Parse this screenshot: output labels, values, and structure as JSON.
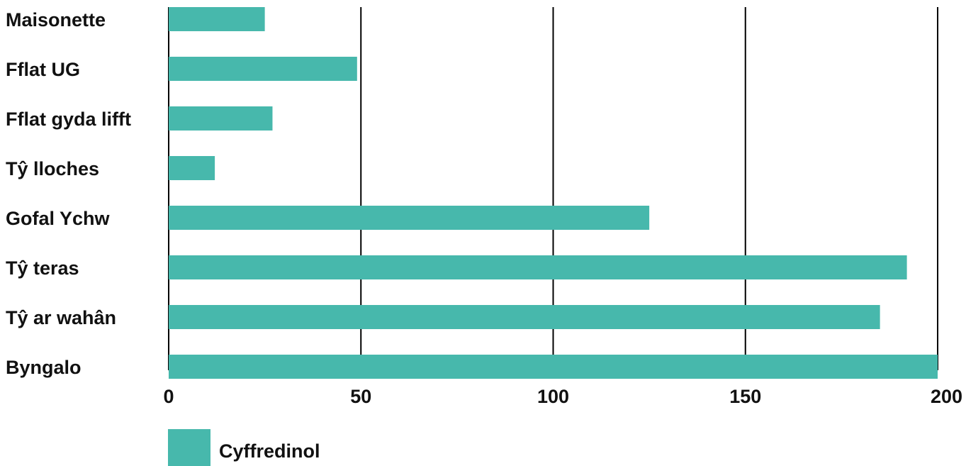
{
  "chart_data": {
    "type": "bar",
    "orientation": "horizontal",
    "categories": [
      "Maisonette",
      "Fflat UG",
      "Fflat gyda lifft",
      "Tŷ lloches",
      "Gofal Ychw",
      "Tŷ teras",
      "Tŷ ar wahân",
      "Byngalo"
    ],
    "series": [
      {
        "name": "Cyffredinol",
        "color": "#47b8ac",
        "values": [
          25,
          49,
          27,
          12,
          125,
          192,
          185,
          200
        ]
      }
    ],
    "xlim": [
      0,
      200
    ],
    "x_ticks": [
      "0",
      "50",
      "100",
      "150",
      "200"
    ],
    "grid": "vertical lines at major ticks",
    "legend_position": "bottom-left",
    "title": "",
    "xlabel": "",
    "ylabel": ""
  }
}
